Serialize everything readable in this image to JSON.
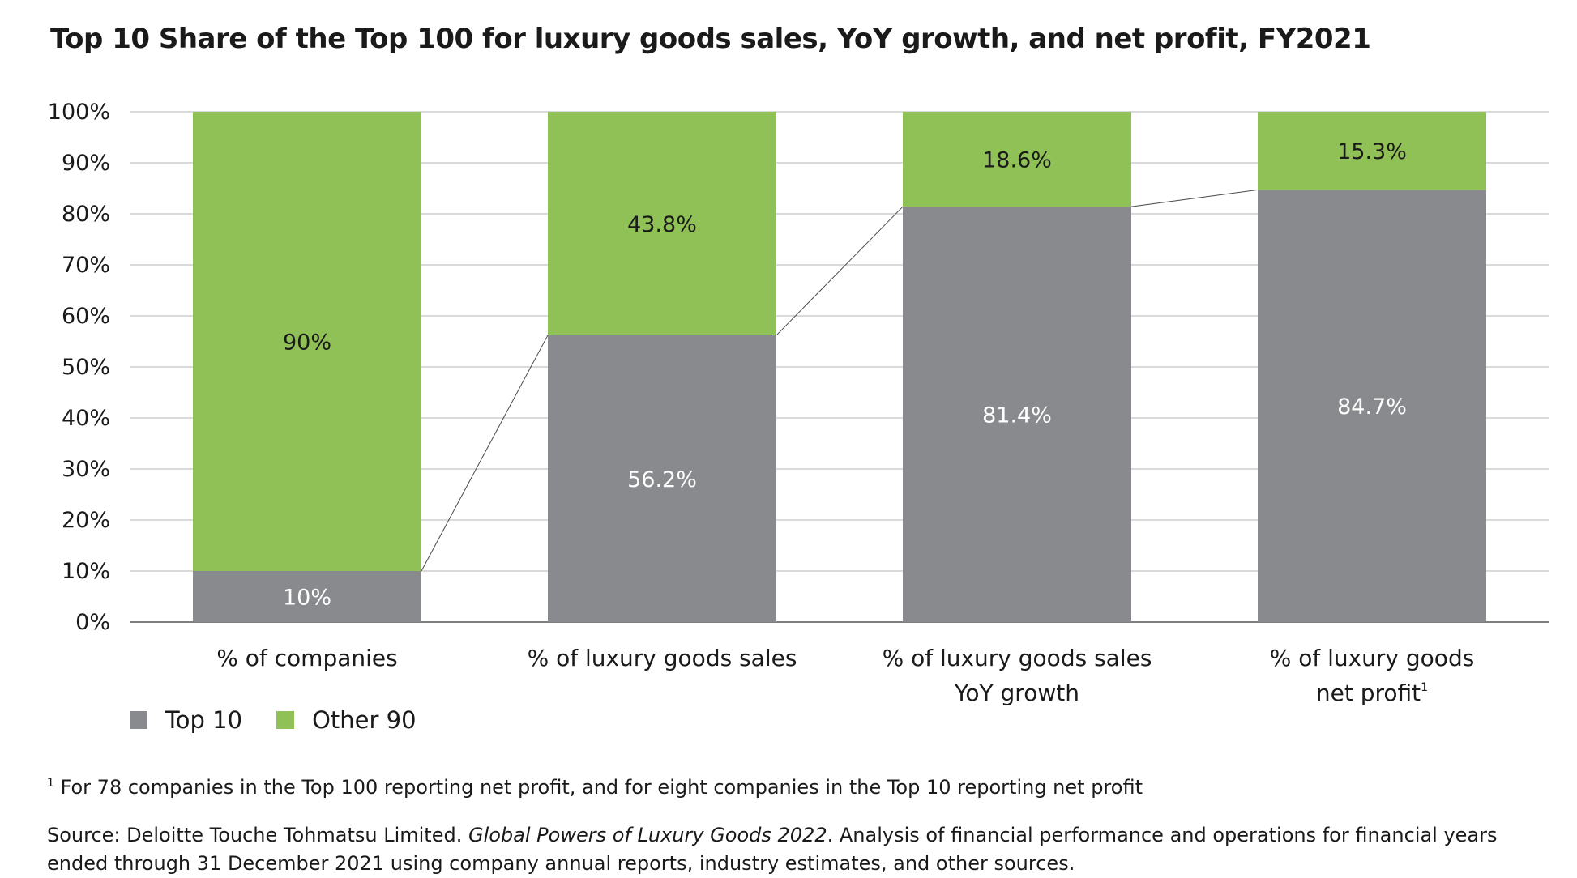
{
  "chart_data": {
    "type": "bar",
    "stacked": true,
    "percent": true,
    "title": "Top 10 Share of the Top 100 for luxury goods sales, YoY growth, and net profit, FY2021",
    "categories": [
      [
        "% of companies"
      ],
      [
        "% of luxury goods sales"
      ],
      [
        "% of luxury goods sales",
        "YoY growth"
      ],
      [
        "% of luxury goods",
        "net profit"
      ]
    ],
    "category_footnote_marks": [
      "",
      "",
      "",
      "1"
    ],
    "series": [
      {
        "name": "Top 10",
        "color": "#898a8e",
        "values": [
          10,
          56.2,
          81.4,
          84.7
        ],
        "labels": [
          "10%",
          "56.2%",
          "81.4%",
          "84.7%"
        ]
      },
      {
        "name": "Other 90",
        "color": "#8fc156",
        "values": [
          90,
          43.8,
          18.6,
          15.3
        ],
        "labels": [
          "90%",
          "43.8%",
          "18.6%",
          "15.3%"
        ]
      }
    ],
    "ylim": [
      0,
      100
    ],
    "yticks": [
      "0%",
      "10%",
      "20%",
      "30%",
      "40%",
      "50%",
      "60%",
      "70%",
      "80%",
      "90%",
      "100%"
    ],
    "connector_lines": true,
    "grid": true,
    "legend_position": "bottom-left"
  },
  "legend": [
    {
      "name": "Top 10",
      "color": "#898a8e"
    },
    {
      "name": "Other 90",
      "color": "#8fc156"
    }
  ],
  "footnote": {
    "mark": "1",
    "text": " For 78 companies in the Top 100 reporting net profit, and for eight companies in the Top 10 reporting net profit"
  },
  "source": {
    "prefix": "Source: Deloitte Touche Tohmatsu Limited. ",
    "publication": "Global Powers of Luxury Goods 2022",
    "suffix": ". Analysis of financial performance and operations for financial years ended through 31 December 2021 using company annual reports, industry estimates, and other sources."
  }
}
